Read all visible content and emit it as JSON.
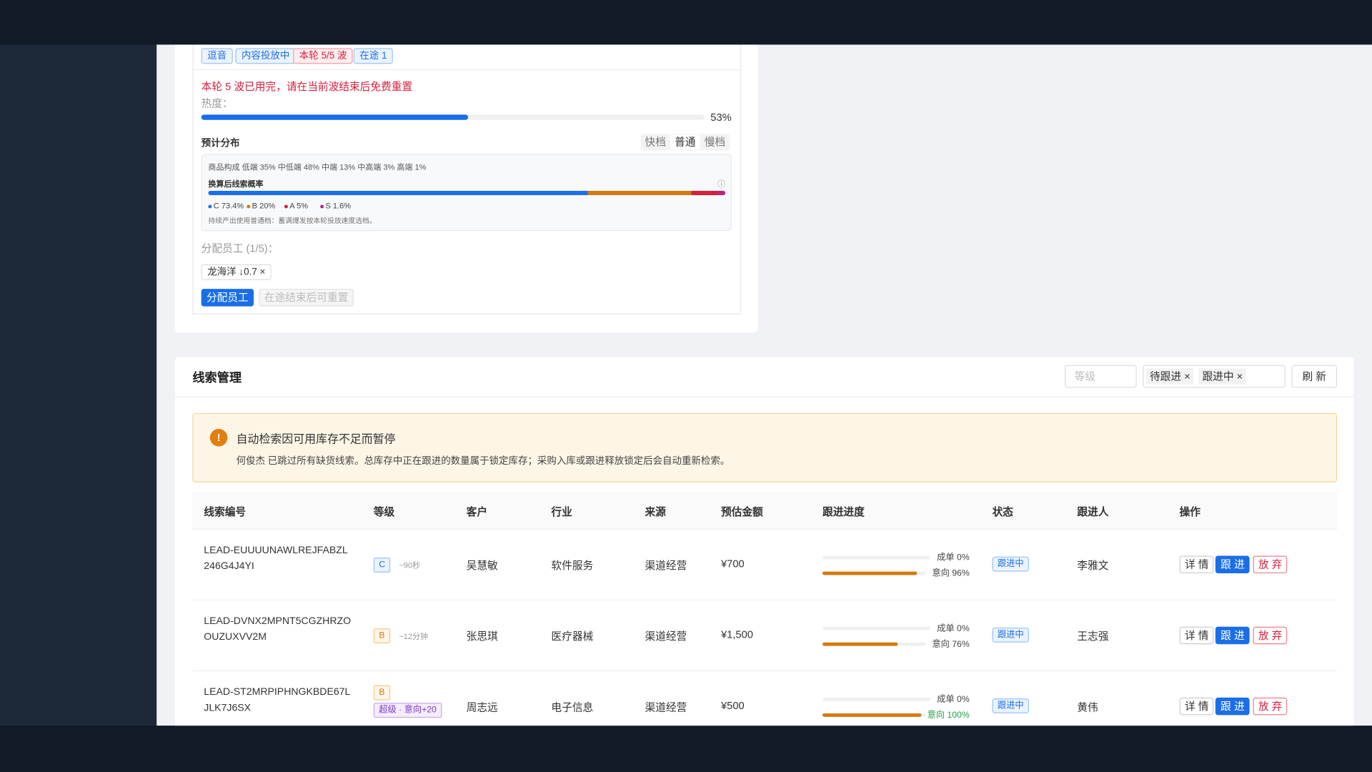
{
  "top_card": {
    "tags": [
      "逗音",
      "内容投放中",
      "本轮 5/5 波",
      "在途 1"
    ],
    "warning": "本轮 5 波已用完，请在当前波结束后免费重置",
    "heat_label": "热度：",
    "heat": {
      "value": 53,
      "label": "53%"
    },
    "forecast_title": "预计分布",
    "speed_options": [
      "快档",
      "普通",
      "慢档"
    ],
    "composition": "商品构成  低端 35%  中低端 48%  中端 13%  中高端 3%  高端 1%",
    "probability_title": "换算后线索概率",
    "probabilities": [
      {
        "value": 73.4,
        "label": "C 73.4%",
        "color": "#1a6ee8"
      },
      {
        "value": 20,
        "label": "B 20%",
        "color": "#d47a12"
      },
      {
        "value": 5,
        "label": "A 5%",
        "color": "#d4203c"
      },
      {
        "value": 1.6,
        "label": "S 1.6%",
        "color": "#c0207a"
      }
    ],
    "note": "持续产出使用普通档：蓄满爆发按本轮投放速度选档。",
    "assign_label": "分配员工 (1/5)：",
    "assignee": "龙海洋 ↓0.7",
    "assign_button": "分配员工",
    "reset_button": "在途结束后可重置"
  },
  "leads": {
    "title": "线索管理",
    "filter_placeholder": "等级",
    "status_filters": [
      "待跟进",
      "跟进中"
    ],
    "refresh": "刷 新",
    "alert_title": "自动检索因可用库存不足而暂停",
    "alert_text": "何俊杰 已跳过所有缺货线索。总库存中正在跟进的数量属于锁定库存；采购入库或跟进释放锁定后会自动重新检索。",
    "columns": [
      "线索编号",
      "等级",
      "客户",
      "行业",
      "来源",
      "预估金额",
      "跟进进度",
      "状态",
      "跟进人",
      "操作"
    ],
    "actions": [
      "详 情",
      "跟 进",
      "放 弃"
    ],
    "rows": [
      {
        "id": "LEAD-EUUUUNAWLREJFABZL246G4J4YI",
        "grade": "C",
        "grade_note": "~90秒",
        "customer": "吴慧敏",
        "industry": "软件服务",
        "source": "渠道经营",
        "amount": "¥700",
        "deal": {
          "value": 0,
          "label": "成单 0%"
        },
        "intent": {
          "value": 96,
          "label": "意向 96%"
        },
        "status": "跟进中",
        "owner": "李雅文"
      },
      {
        "id": "LEAD-DVNX2MPNT5CGZHRZOOUZUXVV2M",
        "grade": "B",
        "grade_note": "~12分钟",
        "customer": "张思琪",
        "industry": "医疗器械",
        "source": "渠道经营",
        "amount": "¥1,500",
        "deal": {
          "value": 0,
          "label": "成单 0%"
        },
        "intent": {
          "value": 76,
          "label": "意向 76%"
        },
        "status": "跟进中",
        "owner": "王志强"
      },
      {
        "id": "LEAD-ST2MRPIPHNGKBDE67LJLK7J6SX",
        "grade": "B",
        "badge": "超级 · 意向+20",
        "customer": "周志远",
        "industry": "电子信息",
        "source": "渠道经营",
        "amount": "¥500",
        "deal": {
          "value": 0,
          "label": "成单 0%"
        },
        "intent": {
          "value": 100,
          "label": "意向 100%"
        },
        "status": "跟进中",
        "owner": "黄伟"
      }
    ]
  }
}
